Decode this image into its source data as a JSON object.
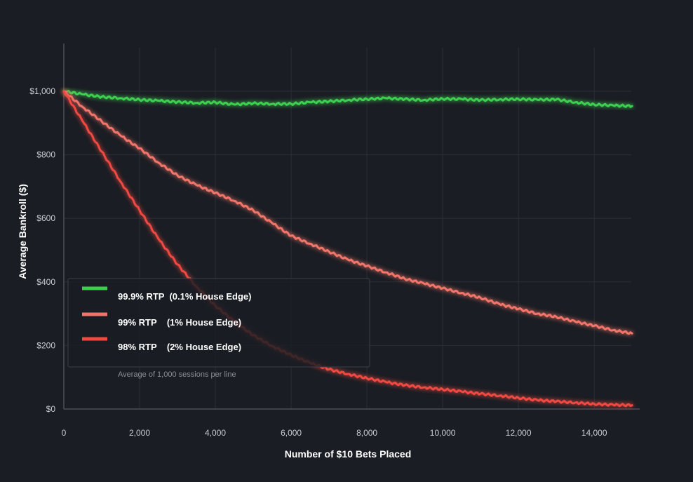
{
  "chart_data": {
    "type": "line",
    "xlabel": "Number of $10 Bets Placed",
    "ylabel": "Average Bankroll ($)",
    "xlim": [
      0,
      15200
    ],
    "ylim": [
      0,
      1150
    ],
    "x_ticks": [
      0,
      2000,
      4000,
      6000,
      8000,
      10000,
      12000,
      14000
    ],
    "x_tick_labels": [
      "0",
      "2,000",
      "4,000",
      "6,000",
      "8,000",
      "10,000",
      "12,000",
      "14,000"
    ],
    "y_ticks": [
      0,
      200,
      400,
      600,
      800,
      1000
    ],
    "y_tick_labels": [
      "$0",
      "$200",
      "$400",
      "$600",
      "$800",
      "$1,000"
    ],
    "grid": true,
    "legend_position": "lower-left",
    "legend_note": "Average of 1,000 sessions per line",
    "series": [
      {
        "name": "99.9% RTP  (0.1% House Edge)",
        "color": "#3ecf4f",
        "x": [
          0,
          500,
          1000,
          1500,
          2000,
          2500,
          3000,
          3500,
          4000,
          4500,
          5000,
          5500,
          6000,
          6500,
          7000,
          7500,
          8000,
          8500,
          9000,
          9500,
          10000,
          10500,
          11000,
          11500,
          12000,
          12500,
          13000,
          13500,
          14000,
          14500,
          15000
        ],
        "y": [
          1000,
          990,
          982,
          978,
          973,
          970,
          966,
          963,
          965,
          958,
          962,
          960,
          960,
          965,
          968,
          972,
          975,
          978,
          975,
          972,
          976,
          975,
          972,
          974,
          975,
          973,
          974,
          965,
          958,
          955,
          953
        ]
      },
      {
        "name": "99% RTP    (1% House Edge)",
        "color": "#f2756a",
        "x": [
          0,
          500,
          1000,
          1500,
          2000,
          2500,
          3000,
          3500,
          4000,
          4500,
          5000,
          5500,
          6000,
          6500,
          7000,
          7500,
          8000,
          8500,
          9000,
          9500,
          10000,
          10500,
          11000,
          11500,
          12000,
          12500,
          13000,
          13500,
          14000,
          14500,
          15000
        ],
        "y": [
          1000,
          950,
          905,
          860,
          820,
          775,
          735,
          705,
          680,
          655,
          625,
          585,
          545,
          520,
          495,
          470,
          450,
          430,
          410,
          395,
          380,
          365,
          350,
          330,
          315,
          300,
          290,
          275,
          262,
          248,
          238
        ]
      },
      {
        "name": "98% RTP    (2% House Edge)",
        "color": "#ef4a42",
        "x": [
          0,
          500,
          1000,
          1500,
          2000,
          2500,
          3000,
          3500,
          4000,
          4500,
          5000,
          5500,
          6000,
          6500,
          7000,
          7500,
          8000,
          8500,
          9000,
          9500,
          10000,
          10500,
          11000,
          11500,
          12000,
          12500,
          13000,
          13500,
          14000,
          14500,
          15000
        ],
        "y": [
          1000,
          905,
          810,
          715,
          625,
          535,
          455,
          385,
          325,
          275,
          232,
          198,
          170,
          145,
          125,
          110,
          97,
          85,
          75,
          68,
          62,
          55,
          48,
          42,
          35,
          28,
          24,
          20,
          16,
          13,
          12
        ]
      }
    ]
  }
}
